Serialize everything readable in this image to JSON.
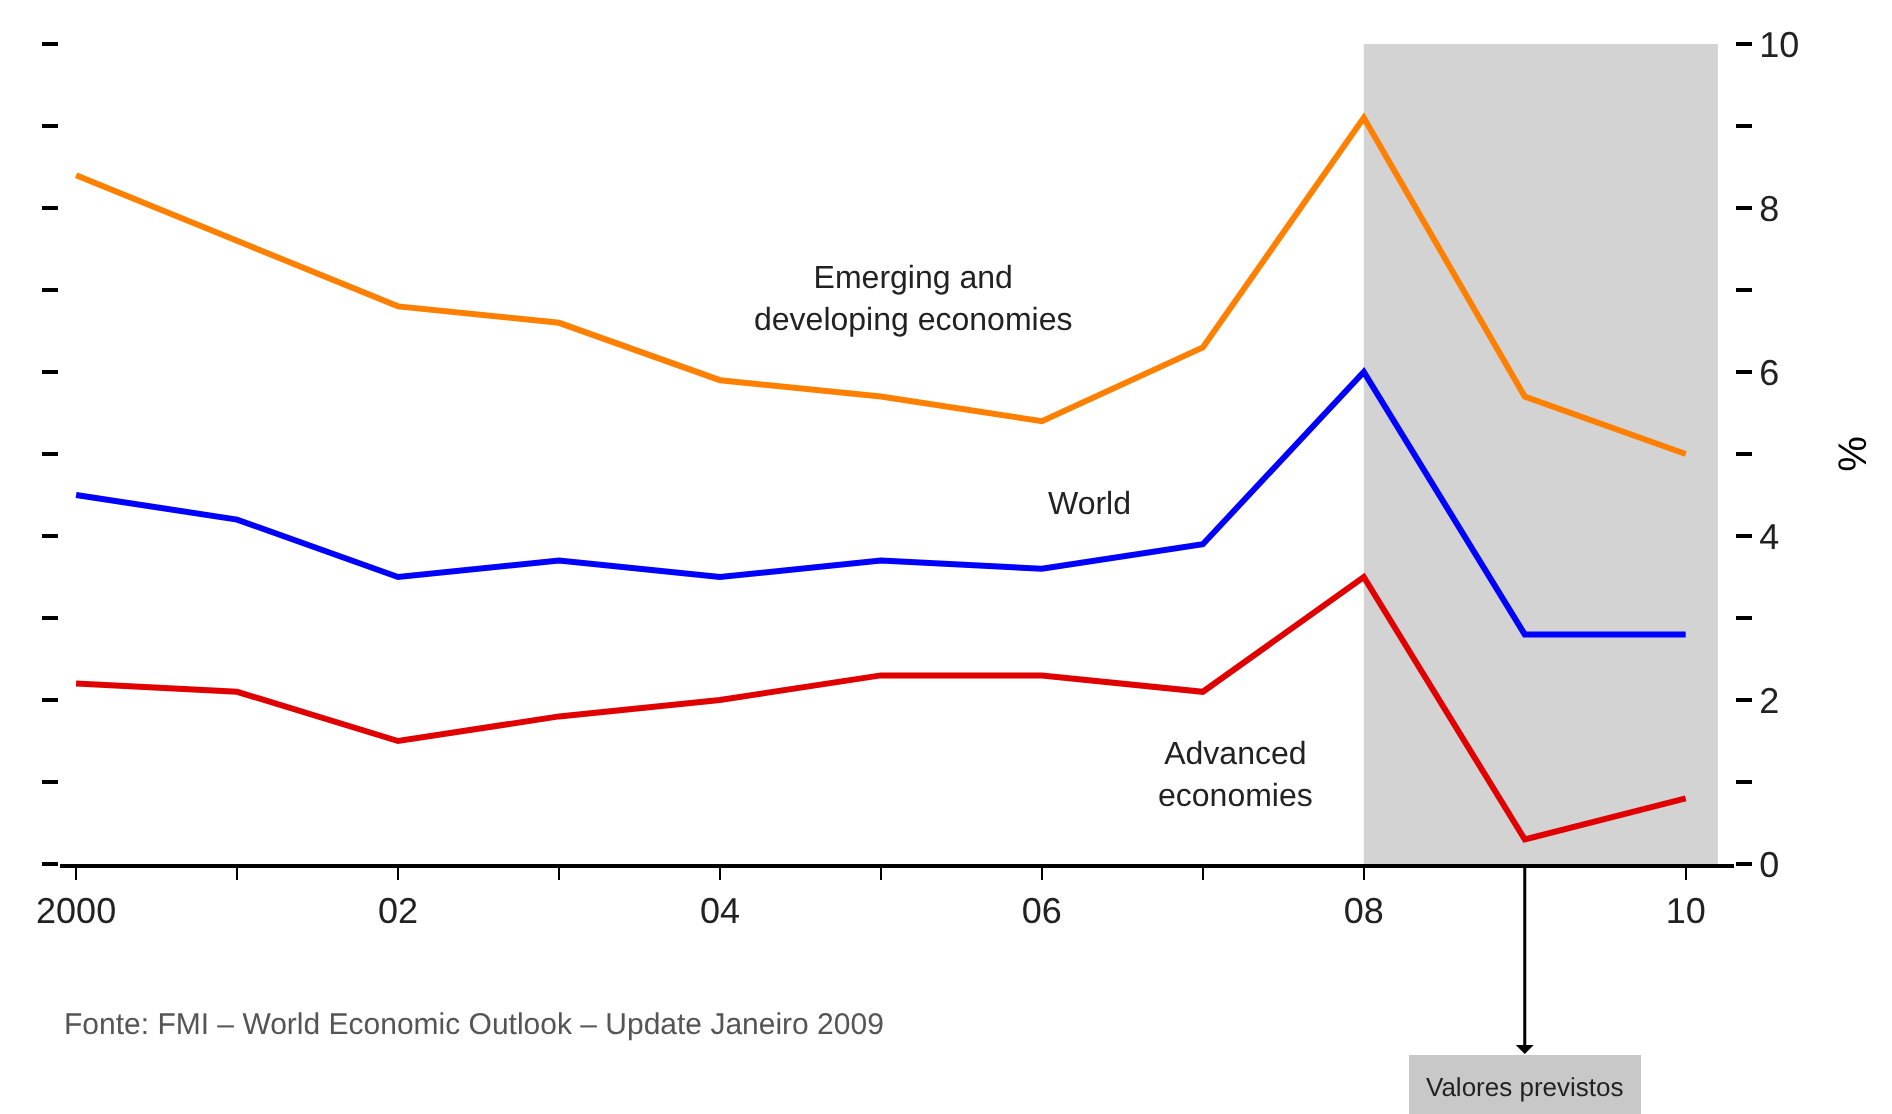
{
  "chart_data": {
    "type": "line",
    "ylabel": "%",
    "x": [
      2000,
      2001,
      2002,
      2003,
      2004,
      2005,
      2006,
      2007,
      2008,
      2009,
      2010
    ],
    "series": [
      {
        "name": "Emerging and\ndeveloping economies",
        "color": "#ff8000",
        "values": [
          8.4,
          7.6,
          6.8,
          6.6,
          5.9,
          5.7,
          5.4,
          6.3,
          9.1,
          5.7,
          5.0
        ]
      },
      {
        "name": "World",
        "color": "#0000ff",
        "values": [
          4.5,
          4.2,
          3.5,
          3.7,
          3.5,
          3.7,
          3.6,
          3.9,
          6.0,
          2.8,
          2.8
        ]
      },
      {
        "name": "Advanced\neconomies",
        "color": "#e00000",
        "values": [
          2.2,
          2.1,
          1.5,
          1.8,
          2.0,
          2.3,
          2.3,
          2.1,
          3.5,
          0.3,
          0.8
        ]
      }
    ],
    "xlim": [
      1999.9,
      2010.3
    ],
    "xticks": [
      2000,
      {
        "value": 2001,
        "label": null
      },
      {
        "value": 2002,
        "label": "02"
      },
      {
        "value": 2003,
        "label": null
      },
      {
        "value": 2004,
        "label": "04"
      },
      {
        "value": 2005,
        "label": null
      },
      {
        "value": 2006,
        "label": "06"
      },
      {
        "value": 2007,
        "label": null
      },
      {
        "value": 2008,
        "label": "08"
      },
      {
        "value": 2009,
        "label": null
      },
      {
        "value": 2010,
        "label": "10"
      }
    ],
    "ylim": [
      0,
      10
    ],
    "yticks": [
      0,
      {
        "value": 1,
        "label": null
      },
      2,
      {
        "value": 3,
        "label": null
      },
      4,
      {
        "value": 5,
        "label": null
      },
      6,
      {
        "value": 7,
        "label": null
      },
      8,
      {
        "value": 9,
        "label": null
      },
      10
    ],
    "bands": [
      {
        "axis": "x",
        "from": 2008,
        "to": 2010.2,
        "color": "#d3d3d3"
      }
    ],
    "annotations": [
      "Fonte: FMI – World Economic Outlook – Update Janeiro 2009",
      {
        "text": "Valores previstos",
        "x": 2009,
        "y": 0
      }
    ],
    "grid": false,
    "legend": false,
    "marker": "none",
    "line_style": "solid"
  }
}
